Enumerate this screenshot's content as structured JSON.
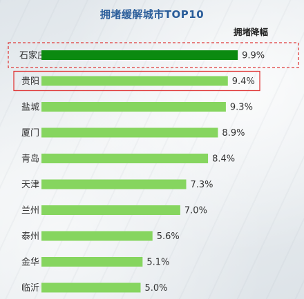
{
  "chart_data": {
    "type": "bar",
    "orientation": "horizontal",
    "title": "拥堵缓解城市TOP10",
    "column_header": "拥堵降幅",
    "categories": [
      "石家庄",
      "贵阳",
      "盐城",
      "厦门",
      "青岛",
      "天津",
      "兰州",
      "泰州",
      "金华",
      "临沂"
    ],
    "values": [
      9.9,
      9.4,
      9.3,
      8.9,
      8.4,
      7.3,
      7.0,
      5.6,
      5.1,
      5.0
    ],
    "value_labels": [
      "9.9%",
      "9.4%",
      "9.3%",
      "8.9%",
      "8.4%",
      "7.3%",
      "7.0%",
      "5.6%",
      "5.1%",
      "5.0%"
    ],
    "unit": "%",
    "grid": false,
    "legend": "none",
    "colors": {
      "highlight_bar": "#0b8a10",
      "bar": "#86d55f",
      "highlight_box": "#e03a3a",
      "title": "#2a5d9a"
    },
    "highlights": [
      {
        "category": "石家庄",
        "style": "dashed-box"
      },
      {
        "category": "贵阳",
        "style": "solid-box"
      }
    ]
  }
}
